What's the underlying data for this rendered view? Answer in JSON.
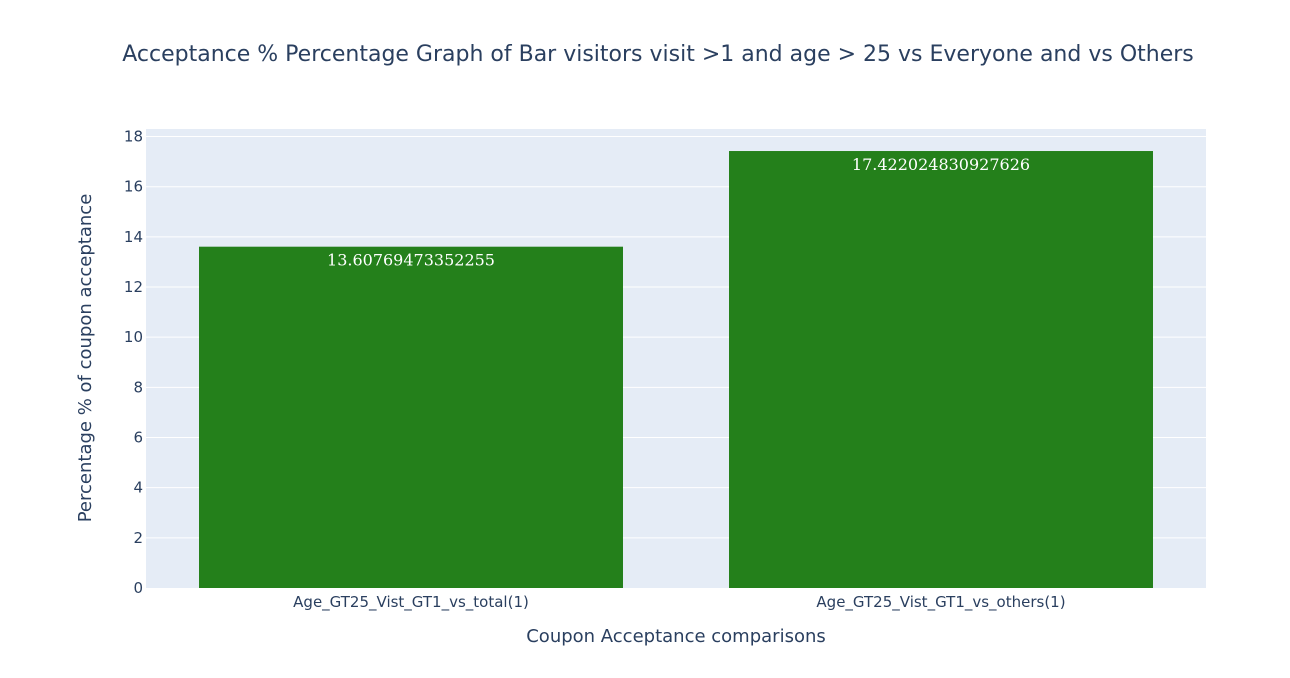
{
  "chart_data": {
    "type": "bar",
    "title": "Acceptance % Percentage Graph of Bar visitors visit >1 and age > 25 vs Everyone and vs Others",
    "xlabel": "Coupon Acceptance comparisons",
    "ylabel": "Percentage % of coupon acceptance",
    "categories": [
      "Age_GT25_Vist_GT1_vs_total(1)",
      "Age_GT25_Vist_GT1_vs_others(1)"
    ],
    "values": [
      13.60769473352255,
      17.422024830927626
    ],
    "data_labels": [
      "13.60769473352255",
      "17.422024830927626"
    ],
    "ylim": [
      0,
      18.3
    ],
    "yticks": [
      0,
      2,
      4,
      6,
      8,
      10,
      12,
      14,
      16,
      18
    ],
    "ytick_labels": [
      "0",
      "2",
      "4",
      "6",
      "8",
      "10",
      "12",
      "14",
      "16",
      "18"
    ],
    "grid": true,
    "legend": "none",
    "colors": {
      "bar": "#24801b",
      "plot_background": "#e5ecf6",
      "gridline": "#ffffff",
      "text": "#2a3f5f"
    }
  }
}
